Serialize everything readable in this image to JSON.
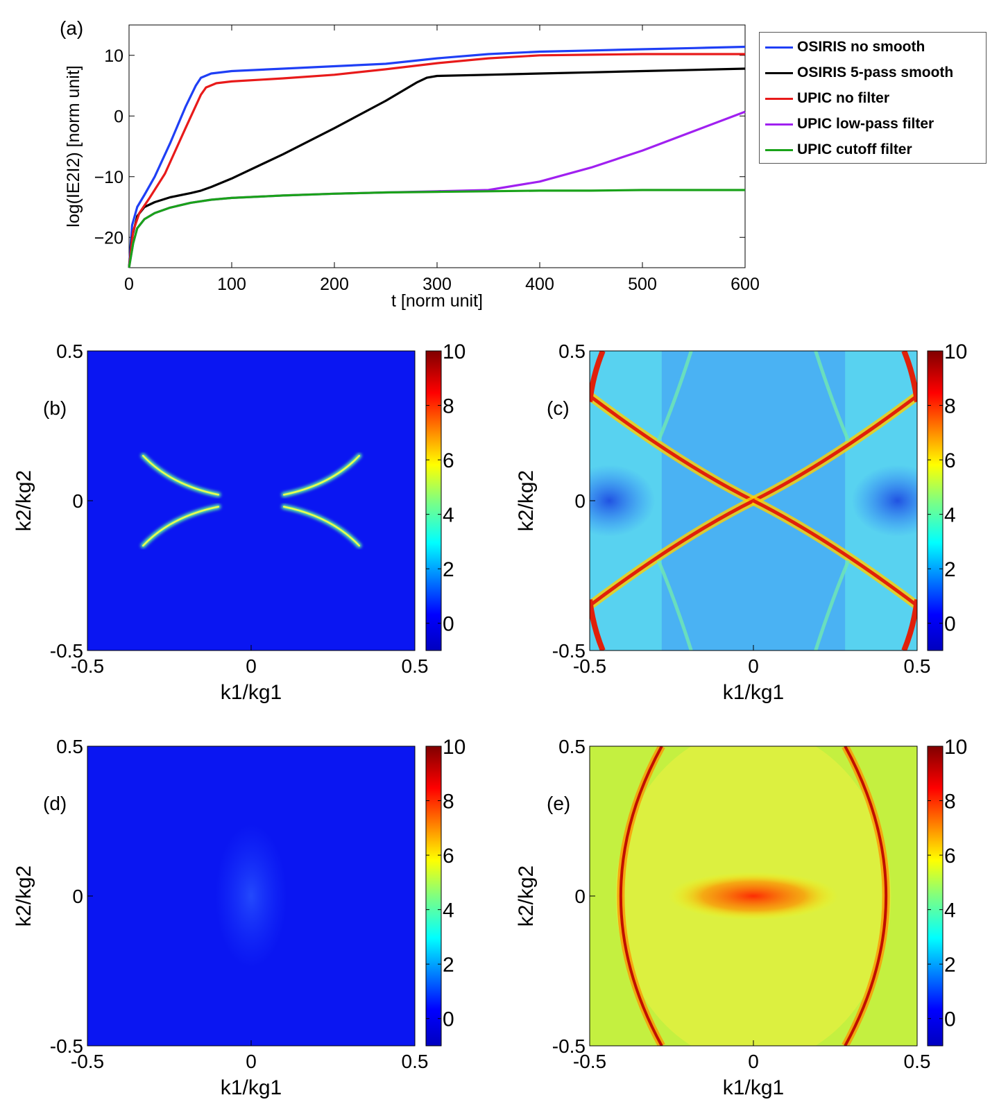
{
  "chart_data": [
    {
      "id": "a",
      "type": "line",
      "panel_label": "(a)",
      "xlabel": "t [norm unit]",
      "ylabel": "log(IE2I2) [norm unit]",
      "xlim": [
        0,
        600
      ],
      "ylim": [
        -25,
        15
      ],
      "xticks": [
        0,
        100,
        200,
        300,
        400,
        500,
        600
      ],
      "xtick_labels": [
        "0",
        "100",
        "200",
        "300",
        "400",
        "500",
        "600"
      ],
      "yticks": [
        10,
        0,
        -10,
        -20
      ],
      "ytick_labels": [
        "10",
        "0",
        "−10",
        "−20"
      ],
      "legend_placement": "outside-right-top",
      "series": [
        {
          "name": "OSIRIS no smooth",
          "color": "#1f3ff5",
          "x": [
            0,
            3,
            8,
            15,
            25,
            40,
            55,
            65,
            70,
            80,
            100,
            150,
            200,
            250,
            300,
            350,
            400,
            450,
            500,
            550,
            600
          ],
          "y": [
            -25,
            -18,
            -15,
            -13,
            -10,
            -4.5,
            1.5,
            5,
            6.3,
            7,
            7.4,
            7.8,
            8.2,
            8.6,
            9.5,
            10.2,
            10.6,
            10.8,
            11,
            11.2,
            11.4
          ]
        },
        {
          "name": "OSIRIS 5-pass smooth",
          "color": "#000000",
          "x": [
            0,
            3,
            8,
            15,
            25,
            40,
            60,
            70,
            80,
            100,
            150,
            200,
            250,
            280,
            290,
            300,
            350,
            400,
            450,
            500,
            550,
            600
          ],
          "y": [
            -25,
            -20,
            -16.5,
            -15,
            -14.2,
            -13.4,
            -12.7,
            -12.3,
            -11.7,
            -10.3,
            -6.3,
            -2,
            2.5,
            5.5,
            6.3,
            6.6,
            6.8,
            7,
            7.2,
            7.4,
            7.6,
            7.8
          ]
        },
        {
          "name": "UPIC no filter",
          "color": "#e81a1a",
          "x": [
            0,
            4,
            10,
            20,
            35,
            55,
            70,
            75,
            85,
            100,
            150,
            200,
            250,
            300,
            350,
            400,
            450,
            500,
            550,
            600
          ],
          "y": [
            -25,
            -19,
            -16,
            -13.5,
            -9.5,
            -2,
            3.5,
            4.7,
            5.4,
            5.7,
            6.2,
            6.8,
            7.7,
            8.7,
            9.5,
            10,
            10.1,
            10.2,
            10.2,
            10.2
          ]
        },
        {
          "name": "UPIC low-pass filter",
          "color": "#a020f0",
          "x": [
            0,
            4,
            8,
            15,
            25,
            40,
            60,
            80,
            100,
            150,
            200,
            250,
            300,
            350,
            400,
            450,
            500,
            550,
            600
          ],
          "y": [
            -25,
            -21,
            -18.5,
            -17,
            -16,
            -15.1,
            -14.3,
            -13.8,
            -13.5,
            -13.1,
            -12.8,
            -12.6,
            -12.4,
            -12.2,
            -10.8,
            -8.5,
            -5.7,
            -2.5,
            0.7
          ]
        },
        {
          "name": "UPIC cutoff filter",
          "color": "#1aa21a",
          "x": [
            0,
            4,
            8,
            15,
            25,
            40,
            60,
            80,
            100,
            150,
            200,
            250,
            300,
            350,
            400,
            450,
            500,
            550,
            600
          ],
          "y": [
            -25,
            -21,
            -18.5,
            -17,
            -16,
            -15.1,
            -14.3,
            -13.8,
            -13.5,
            -13.1,
            -12.8,
            -12.6,
            -12.5,
            -12.4,
            -12.3,
            -12.3,
            -12.2,
            -12.2,
            -12.2
          ]
        }
      ]
    },
    {
      "id": "b",
      "type": "heatmap",
      "panel_label": "(b)",
      "pattern": "x-curves-weak",
      "xlabel": "k1/kg1",
      "ylabel": "k2/kg2",
      "xlim": [
        -0.5,
        0.5
      ],
      "ylim": [
        -0.5,
        0.5
      ],
      "xtick_labels": [
        "-0.5",
        "0",
        "0.5"
      ],
      "ytick_labels": [
        "0.5",
        "0",
        "-0.5"
      ],
      "colorbar_ticks": [
        "10",
        "8",
        "6",
        "4",
        "2",
        "0"
      ],
      "colorbar_range": [
        -1,
        10
      ]
    },
    {
      "id": "c",
      "type": "heatmap",
      "panel_label": "(c)",
      "pattern": "x-curves-strong",
      "xlabel": "k1/kg1",
      "ylabel": "k2/kg2",
      "xlim": [
        -0.5,
        0.5
      ],
      "ylim": [
        -0.5,
        0.5
      ],
      "xtick_labels": [
        "-0.5",
        "0",
        "0.5"
      ],
      "ytick_labels": [
        "0.5",
        "0",
        "-0.5"
      ],
      "colorbar_ticks": [
        "10",
        "8",
        "6",
        "4",
        "2",
        "0"
      ],
      "colorbar_range": [
        -1,
        10
      ]
    },
    {
      "id": "d",
      "type": "heatmap",
      "panel_label": "(d)",
      "pattern": "central-faint",
      "xlabel": "k1/kg1",
      "ylabel": "k2/kg2",
      "xlim": [
        -0.5,
        0.5
      ],
      "ylim": [
        -0.5,
        0.5
      ],
      "xtick_labels": [
        "-0.5",
        "0",
        "0.5"
      ],
      "ytick_labels": [
        "0.5",
        "0",
        "-0.5"
      ],
      "colorbar_ticks": [
        "10",
        "8",
        "6",
        "4",
        "2",
        "0"
      ],
      "colorbar_range": [
        -1,
        10
      ]
    },
    {
      "id": "e",
      "type": "heatmap",
      "panel_label": "(e)",
      "pattern": "ellipse-hot-center",
      "xlabel": "k1/kg1",
      "ylabel": "k2/kg2",
      "xlim": [
        -0.5,
        0.5
      ],
      "ylim": [
        -0.5,
        0.5
      ],
      "xtick_labels": [
        "-0.5",
        "0",
        "0.5"
      ],
      "ytick_labels": [
        "0.5",
        "0",
        "-0.5"
      ],
      "colorbar_ticks": [
        "10",
        "8",
        "6",
        "4",
        "2",
        "0"
      ],
      "colorbar_range": [
        -1,
        10
      ]
    }
  ]
}
